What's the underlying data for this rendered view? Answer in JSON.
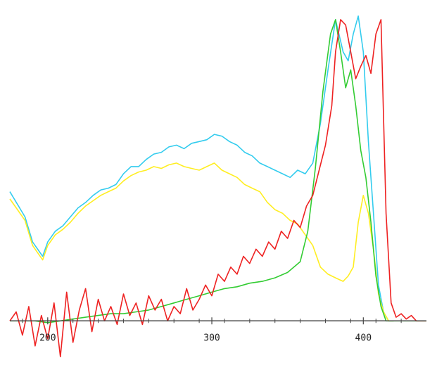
{
  "chart_data": {
    "type": "line",
    "title": "",
    "xlabel": "",
    "ylabel": "",
    "grid": false,
    "legend": "none",
    "xlim": [
      120,
      450
    ],
    "ylim": [
      -25,
      175
    ],
    "baseline": 0,
    "x_ticks": [
      {
        "value": 150,
        "label": "200"
      },
      {
        "value": 280,
        "label": "300"
      },
      {
        "value": 400,
        "label": "400"
      }
    ],
    "series": [
      {
        "color": "#33ccee",
        "x": [
          120,
          126,
          132,
          138,
          142,
          146,
          150,
          156,
          162,
          168,
          174,
          180,
          186,
          192,
          198,
          204,
          210,
          216,
          222,
          228,
          234,
          240,
          246,
          252,
          258,
          264,
          270,
          276,
          282,
          288,
          294,
          300,
          306,
          312,
          318,
          324,
          330,
          336,
          342,
          348,
          354,
          360,
          366,
          372,
          378,
          384,
          388,
          392,
          396,
          400,
          404,
          408,
          412,
          416,
          420,
          424
        ],
        "y": [
          72,
          65,
          58,
          44,
          40,
          36,
          44,
          50,
          53,
          58,
          63,
          66,
          70,
          73,
          74,
          76,
          82,
          86,
          86,
          90,
          93,
          94,
          97,
          98,
          96,
          99,
          100,
          101,
          104,
          103,
          100,
          98,
          94,
          92,
          88,
          86,
          84,
          82,
          80,
          84,
          82,
          88,
          110,
          140,
          168,
          150,
          145,
          160,
          170,
          150,
          100,
          60,
          20,
          5,
          0,
          0
        ]
      },
      {
        "color": "#ffee22",
        "x": [
          120,
          126,
          132,
          138,
          142,
          146,
          150,
          156,
          162,
          168,
          174,
          180,
          186,
          192,
          198,
          204,
          210,
          216,
          222,
          228,
          234,
          240,
          246,
          252,
          258,
          264,
          270,
          276,
          282,
          288,
          294,
          300,
          306,
          312,
          318,
          324,
          330,
          336,
          342,
          348,
          354,
          360,
          366,
          372,
          378,
          384,
          388,
          392,
          396,
          400,
          404,
          408,
          412,
          416,
          420,
          424
        ],
        "y": [
          68,
          62,
          56,
          42,
          38,
          34,
          42,
          48,
          51,
          55,
          60,
          64,
          67,
          70,
          72,
          74,
          78,
          81,
          83,
          84,
          86,
          85,
          87,
          88,
          86,
          85,
          84,
          86,
          88,
          84,
          82,
          80,
          76,
          74,
          72,
          66,
          62,
          60,
          56,
          54,
          48,
          42,
          30,
          26,
          24,
          22,
          25,
          30,
          55,
          70,
          60,
          40,
          15,
          5,
          0,
          0
        ]
      },
      {
        "color": "#33cc33",
        "x": [
          120,
          130,
          140,
          150,
          160,
          170,
          180,
          190,
          200,
          210,
          220,
          230,
          240,
          250,
          260,
          270,
          280,
          290,
          300,
          310,
          320,
          330,
          340,
          350,
          356,
          362,
          368,
          374,
          378,
          382,
          386,
          390,
          394,
          398,
          402,
          406,
          410,
          414,
          418,
          422,
          430,
          440,
          450
        ],
        "y": [
          0,
          0,
          0,
          -1,
          0,
          1,
          2,
          3,
          4,
          4,
          5,
          6,
          8,
          10,
          12,
          14,
          16,
          18,
          19,
          21,
          22,
          24,
          27,
          33,
          50,
          85,
          128,
          160,
          168,
          150,
          130,
          140,
          120,
          95,
          80,
          55,
          25,
          8,
          0,
          0,
          0,
          0,
          0
        ]
      },
      {
        "color": "#ee2222",
        "x": [
          120,
          125,
          130,
          135,
          140,
          145,
          150,
          155,
          160,
          165,
          170,
          175,
          180,
          185,
          190,
          195,
          200,
          205,
          210,
          215,
          220,
          225,
          230,
          235,
          240,
          245,
          250,
          255,
          260,
          265,
          270,
          275,
          280,
          285,
          290,
          295,
          300,
          305,
          310,
          315,
          320,
          325,
          330,
          335,
          340,
          345,
          350,
          355,
          360,
          365,
          370,
          375,
          378,
          382,
          386,
          390,
          394,
          398,
          402,
          406,
          410,
          414,
          418,
          422,
          426,
          430,
          434,
          438,
          442,
          446,
          450
        ],
        "y": [
          0,
          5,
          -8,
          8,
          -14,
          3,
          -10,
          10,
          -20,
          16,
          -12,
          6,
          18,
          -6,
          12,
          0,
          8,
          -2,
          15,
          3,
          10,
          -2,
          14,
          6,
          12,
          0,
          8,
          4,
          18,
          6,
          12,
          20,
          14,
          26,
          22,
          30,
          26,
          36,
          32,
          40,
          36,
          44,
          40,
          50,
          46,
          56,
          52,
          64,
          70,
          84,
          98,
          120,
          150,
          168,
          165,
          150,
          135,
          142,
          148,
          138,
          160,
          168,
          60,
          10,
          2,
          4,
          1,
          3,
          0,
          0,
          0
        ]
      }
    ]
  }
}
